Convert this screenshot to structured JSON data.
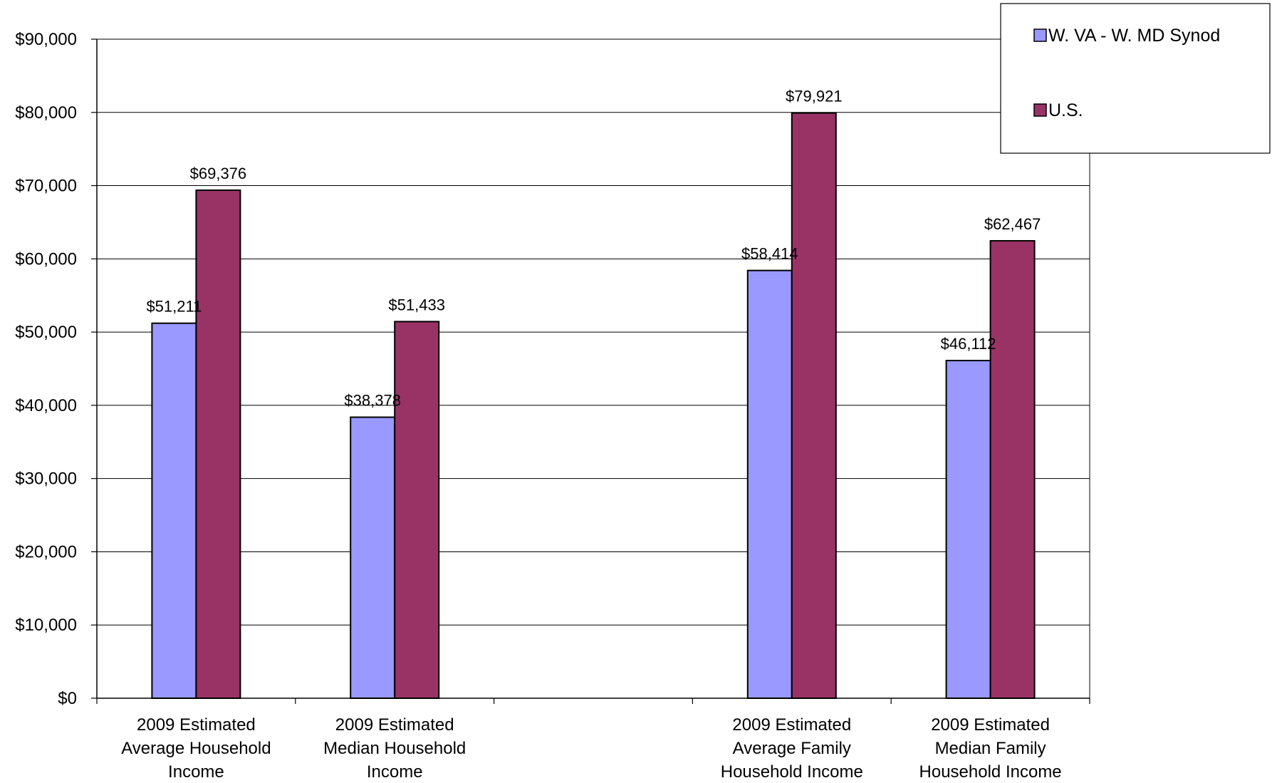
{
  "chart_data": {
    "type": "bar",
    "categories": [
      [
        "2009 Estimated",
        "Average Household",
        "Income"
      ],
      [
        "2009 Estimated",
        "Median Household",
        "Income"
      ],
      [
        "",
        "",
        ""
      ],
      [
        "2009 Estimated",
        "Average Family",
        "Household Income"
      ],
      [
        "2009 Estimated",
        "Median Family",
        "Household Income"
      ]
    ],
    "series": [
      {
        "name": "W. VA - W. MD Synod",
        "color": "#9999ff",
        "values": [
          51211,
          38378,
          null,
          58414,
          46112
        ],
        "labels": [
          "$51,211",
          "$38,378",
          "",
          "$58,414",
          "$46,112"
        ]
      },
      {
        "name": "U.S.",
        "color": "#993366",
        "values": [
          69376,
          51433,
          null,
          79921,
          62467
        ],
        "labels": [
          "$69,376",
          "$51,433",
          "",
          "$79,921",
          "$62,467"
        ]
      }
    ],
    "ylim": [
      0,
      90000
    ],
    "yticks": [
      0,
      10000,
      20000,
      30000,
      40000,
      50000,
      60000,
      70000,
      80000,
      90000
    ],
    "ytick_labels": [
      "$0",
      "$10,000",
      "$20,000",
      "$30,000",
      "$40,000",
      "$50,000",
      "$60,000",
      "$70,000",
      "$80,000",
      "$90,000"
    ],
    "grid": true,
    "legend_position": "top-right"
  }
}
